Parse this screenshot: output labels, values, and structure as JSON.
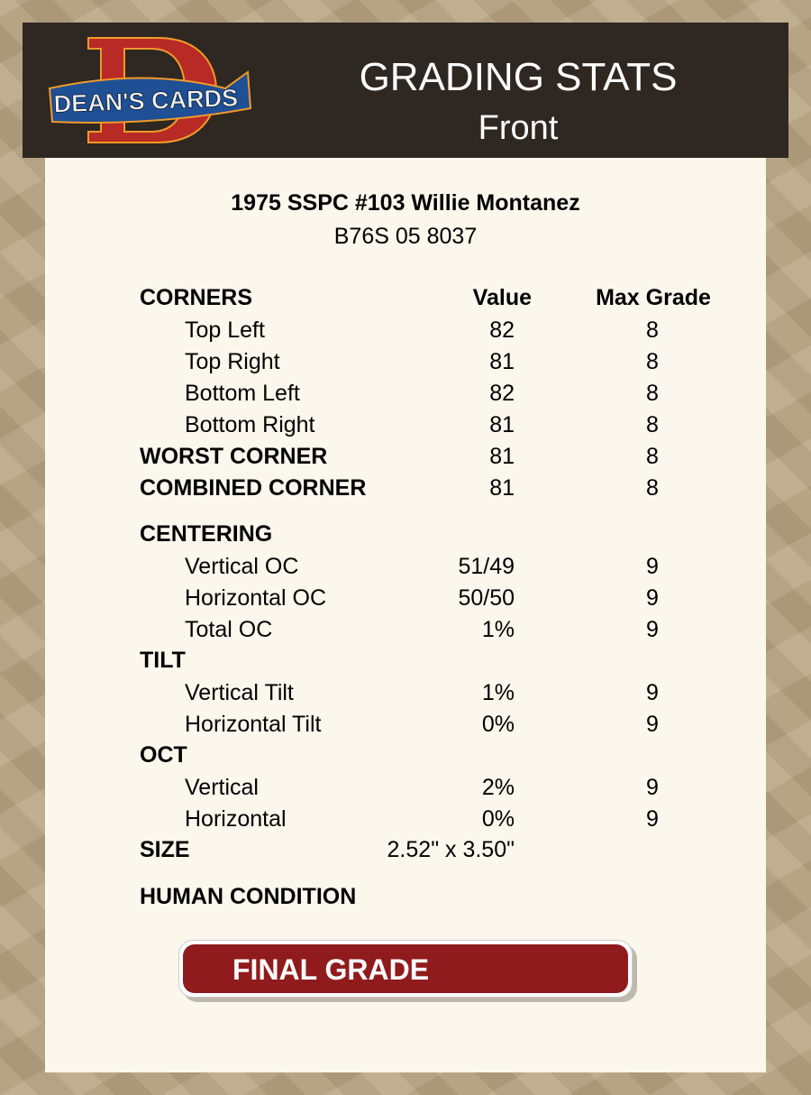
{
  "header": {
    "logo_text": "DEAN'S CARDS",
    "title": "GRADING STATS",
    "subtitle": "Front"
  },
  "card": {
    "name": "1975 SSPC #103 Willie Montanez",
    "cert": "B76S 05 8037"
  },
  "columns": {
    "value": "Value",
    "max": "Max Grade"
  },
  "rows": [
    {
      "label": "CORNERS",
      "value": "",
      "max": "",
      "bold": true,
      "header": true
    },
    {
      "label": "Top Left",
      "value": "82",
      "max": "8"
    },
    {
      "label": "Top Right",
      "value": "81",
      "max": "8"
    },
    {
      "label": "Bottom Left",
      "value": "82",
      "max": "8"
    },
    {
      "label": "Bottom Right",
      "value": "81",
      "max": "8"
    },
    {
      "label": "WORST CORNER",
      "value": "81",
      "max": "8",
      "bold": true
    },
    {
      "label": "COMBINED CORNER",
      "value": "81",
      "max": "8",
      "bold": true
    },
    {
      "label": "CENTERING",
      "value": "",
      "max": "",
      "bold": true
    },
    {
      "label": "Vertical OC",
      "value": "51/49",
      "max": "9"
    },
    {
      "label": "Horizontal OC",
      "value": "50/50",
      "max": "9"
    },
    {
      "label": "Total OC",
      "value": "1%",
      "max": "9"
    },
    {
      "label": "TILT",
      "value": "",
      "max": "",
      "bold": true
    },
    {
      "label": "Vertical Tilt",
      "value": "1%",
      "max": "9"
    },
    {
      "label": "Horizontal Tilt",
      "value": "0%",
      "max": "9"
    },
    {
      "label": "OCT",
      "value": "",
      "max": "",
      "bold": true
    },
    {
      "label": "Vertical",
      "value": "2%",
      "max": "9"
    },
    {
      "label": "Horizontal",
      "value": "0%",
      "max": "9"
    },
    {
      "label": "SIZE",
      "value": "2.52\" x 3.50\"",
      "max": "",
      "bold": true
    },
    {
      "label": "HUMAN CONDITION",
      "value": "",
      "max": "",
      "bold": true
    }
  ],
  "final": {
    "label": "FINAL GRADE"
  },
  "colors": {
    "header_bg": "#2f2721",
    "panel_bg": "#fcf7ed",
    "final_bg": "#8f1b1d"
  }
}
